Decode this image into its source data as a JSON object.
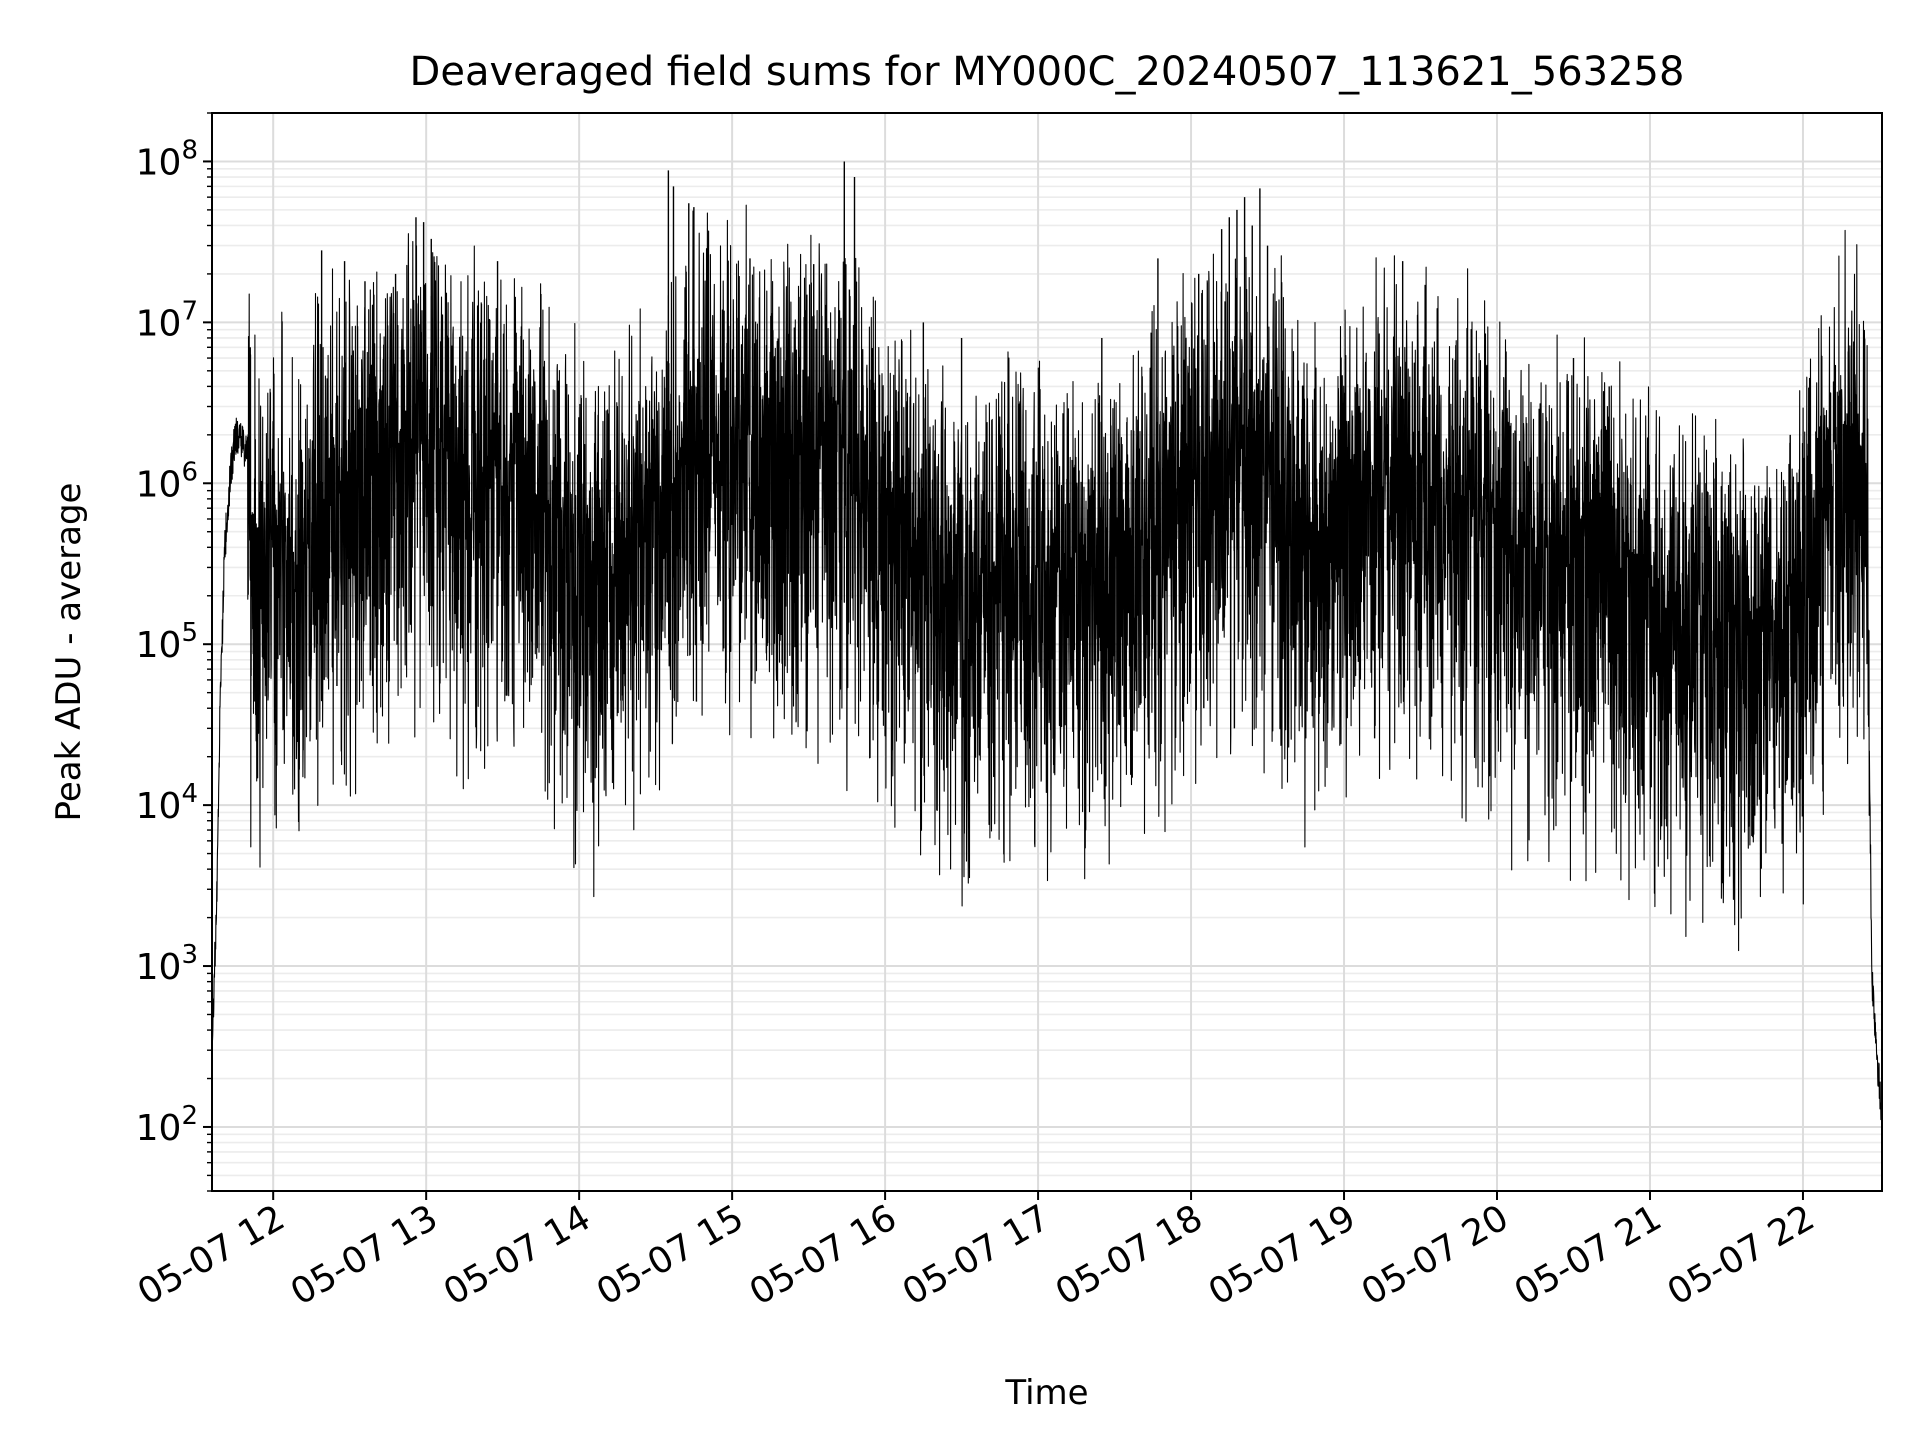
{
  "chart_data": {
    "type": "line",
    "title": "Deaveraged field sums for MY000C_20240507_113621_563258",
    "xlabel": "Time",
    "ylabel": "Peak ADU - average",
    "yscale": "log",
    "ylim": [
      40,
      200000000
    ],
    "xlim": [
      "2024-05-07 11:36",
      "2024-05-07 22:31"
    ],
    "grid": true,
    "x_ticks": [
      {
        "x": "2024-05-07 12:00",
        "label": "05-07 12"
      },
      {
        "x": "2024-05-07 13:00",
        "label": "05-07 13"
      },
      {
        "x": "2024-05-07 14:00",
        "label": "05-07 14"
      },
      {
        "x": "2024-05-07 15:00",
        "label": "05-07 15"
      },
      {
        "x": "2024-05-07 16:00",
        "label": "05-07 16"
      },
      {
        "x": "2024-05-07 17:00",
        "label": "05-07 17"
      },
      {
        "x": "2024-05-07 18:00",
        "label": "05-07 18"
      },
      {
        "x": "2024-05-07 19:00",
        "label": "05-07 19"
      },
      {
        "x": "2024-05-07 20:00",
        "label": "05-07 20"
      },
      {
        "x": "2024-05-07 21:00",
        "label": "05-07 21"
      },
      {
        "x": "2024-05-07 22:00",
        "label": "05-07 22"
      }
    ],
    "y_ticks": [
      {
        "value": 100,
        "base": "10",
        "exp": "2"
      },
      {
        "value": 1000,
        "base": "10",
        "exp": "3"
      },
      {
        "value": 10000,
        "base": "10",
        "exp": "4"
      },
      {
        "value": 100000,
        "base": "10",
        "exp": "5"
      },
      {
        "value": 1000000,
        "base": "10",
        "exp": "6"
      },
      {
        "value": 10000000,
        "base": "10",
        "exp": "7"
      },
      {
        "value": 100000000,
        "base": "10",
        "exp": "8"
      }
    ],
    "series": [
      {
        "color": "#000000",
        "x": [
          "2024-05-07 11:36",
          "2024-05-07 11:37",
          "2024-05-07 11:38",
          "2024-05-07 11:39",
          "2024-05-07 11:41",
          "2024-05-07 11:43",
          "2024-05-07 11:45",
          "2024-05-07 11:48",
          "2024-05-07 11:50",
          "2024-05-07 11:52",
          "2024-05-07 11:55",
          "2024-05-07 12:00",
          "2024-05-07 12:10",
          "2024-05-07 12:20",
          "2024-05-07 12:30",
          "2024-05-07 12:40",
          "2024-05-07 12:50",
          "2024-05-07 13:00",
          "2024-05-07 13:10",
          "2024-05-07 13:20",
          "2024-05-07 13:30",
          "2024-05-07 13:40",
          "2024-05-07 13:50",
          "2024-05-07 14:00",
          "2024-05-07 14:10",
          "2024-05-07 14:20",
          "2024-05-07 14:30",
          "2024-05-07 14:40",
          "2024-05-07 14:50",
          "2024-05-07 15:00",
          "2024-05-07 15:10",
          "2024-05-07 15:20",
          "2024-05-07 15:30",
          "2024-05-07 15:40",
          "2024-05-07 15:50",
          "2024-05-07 16:00",
          "2024-05-07 16:10",
          "2024-05-07 16:20",
          "2024-05-07 16:30",
          "2024-05-07 16:40",
          "2024-05-07 16:50",
          "2024-05-07 17:00",
          "2024-05-07 17:10",
          "2024-05-07 17:20",
          "2024-05-07 17:30",
          "2024-05-07 17:40",
          "2024-05-07 17:50",
          "2024-05-07 18:00",
          "2024-05-07 18:10",
          "2024-05-07 18:20",
          "2024-05-07 18:30",
          "2024-05-07 18:40",
          "2024-05-07 18:50",
          "2024-05-07 19:00",
          "2024-05-07 19:10",
          "2024-05-07 19:20",
          "2024-05-07 19:30",
          "2024-05-07 19:40",
          "2024-05-07 19:50",
          "2024-05-07 20:00",
          "2024-05-07 20:10",
          "2024-05-07 20:20",
          "2024-05-07 20:30",
          "2024-05-07 20:40",
          "2024-05-07 20:50",
          "2024-05-07 21:00",
          "2024-05-07 21:10",
          "2024-05-07 21:20",
          "2024-05-07 21:30",
          "2024-05-07 21:40",
          "2024-05-07 21:50",
          "2024-05-07 22:00",
          "2024-05-07 22:05",
          "2024-05-07 22:10",
          "2024-05-07 22:15",
          "2024-05-07 22:20",
          "2024-05-07 22:25",
          "2024-05-07 22:27",
          "2024-05-07 22:29",
          "2024-05-07 22:31"
        ],
        "y": [
          300,
          1000,
          3000,
          30000,
          400000,
          1000000,
          2000000,
          1800000,
          1500000,
          400000,
          300000,
          500000,
          300000,
          800000,
          1000000,
          1500000,
          1800000,
          2000000,
          1500000,
          1200000,
          1500000,
          1000000,
          600000,
          400000,
          300000,
          500000,
          800000,
          1200000,
          3000000,
          2000000,
          2000000,
          1500000,
          1500000,
          2000000,
          1200000,
          800000,
          500000,
          300000,
          200000,
          300000,
          400000,
          300000,
          250000,
          300000,
          350000,
          400000,
          600000,
          1200000,
          1500000,
          1500000,
          1200000,
          800000,
          500000,
          800000,
          900000,
          1000000,
          1000000,
          900000,
          800000,
          600000,
          400000,
          400000,
          300000,
          300000,
          250000,
          200000,
          150000,
          150000,
          120000,
          120000,
          120000,
          250000,
          500000,
          800000,
          1400000,
          1700000,
          800000,
          900,
          300,
          100
        ]
      }
    ],
    "noise_band": {
      "decades_below": [
        0,
        0.05,
        0.1,
        0.2,
        0.3,
        0.4,
        0.5,
        0.55,
        0.6,
        0.7,
        0.75,
        0.8,
        1.0,
        1.05,
        1.1,
        1.2,
        1.3,
        1.4,
        1.5,
        1.6,
        1.7,
        1.8,
        1.9,
        2.0,
        2.1
      ],
      "decades_above": [
        0,
        0.1,
        0.2,
        0.3,
        0.4,
        0.5,
        0.6,
        0.8,
        1.0,
        1.2,
        1.4,
        1.5,
        1.6,
        1.8
      ]
    },
    "peaks": [
      {
        "x": "2024-05-07 11:51",
        "y": 7000000
      },
      {
        "x": "2024-05-07 12:19",
        "y": 28000000
      },
      {
        "x": "2024-05-07 12:28",
        "y": 24000000
      },
      {
        "x": "2024-05-07 12:36",
        "y": 18000000
      },
      {
        "x": "2024-05-07 12:48",
        "y": 20000000
      },
      {
        "x": "2024-05-07 12:56",
        "y": 45000000
      },
      {
        "x": "2024-05-07 12:59",
        "y": 42000000
      },
      {
        "x": "2024-05-07 13:02",
        "y": 33000000
      },
      {
        "x": "2024-05-07 13:28",
        "y": 24000000
      },
      {
        "x": "2024-05-07 13:45",
        "y": 15000000
      },
      {
        "x": "2024-05-07 14:35",
        "y": 88000000
      },
      {
        "x": "2024-05-07 14:37",
        "y": 70000000
      },
      {
        "x": "2024-05-07 14:43",
        "y": 55000000
      },
      {
        "x": "2024-05-07 14:45",
        "y": 52000000
      },
      {
        "x": "2024-05-07 15:07",
        "y": 25000000
      },
      {
        "x": "2024-05-07 15:32",
        "y": 23000000
      },
      {
        "x": "2024-05-07 15:44",
        "y": 100000000
      },
      {
        "x": "2024-05-07 15:48",
        "y": 80000000
      },
      {
        "x": "2024-05-07 15:46",
        "y": 16000000
      },
      {
        "x": "2024-05-07 16:15",
        "y": 10000000
      },
      {
        "x": "2024-05-07 16:30",
        "y": 8000000
      },
      {
        "x": "2024-05-07 17:25",
        "y": 8000000
      },
      {
        "x": "2024-05-07 17:47",
        "y": 25000000
      },
      {
        "x": "2024-05-07 18:03",
        "y": 20000000
      },
      {
        "x": "2024-05-07 18:12",
        "y": 38000000
      },
      {
        "x": "2024-05-07 18:15",
        "y": 45000000
      },
      {
        "x": "2024-05-07 18:18",
        "y": 50000000
      },
      {
        "x": "2024-05-07 18:21",
        "y": 60000000
      },
      {
        "x": "2024-05-07 18:24",
        "y": 40000000
      },
      {
        "x": "2024-05-07 18:27",
        "y": 68000000
      },
      {
        "x": "2024-05-07 18:30",
        "y": 30000000
      },
      {
        "x": "2024-05-07 19:23",
        "y": 24000000
      },
      {
        "x": "2024-05-07 20:30",
        "y": 6000000
      },
      {
        "x": "2024-05-07 20:44",
        "y": 4000000
      },
      {
        "x": "2024-05-07 21:55",
        "y": 2000000
      },
      {
        "x": "2024-05-07 22:14",
        "y": 3500000
      },
      {
        "x": "2024-05-07 22:19",
        "y": 3200000
      }
    ],
    "troughs": [
      {
        "x": "2024-05-07 12:20",
        "y": 60000
      },
      {
        "x": "2024-05-07 12:25",
        "y": 55000
      },
      {
        "x": "2024-05-07 12:39",
        "y": 55000
      },
      {
        "x": "2024-05-07 14:10",
        "y": 45000
      },
      {
        "x": "2024-05-07 14:17",
        "y": 48000
      },
      {
        "x": "2024-05-07 14:46",
        "y": 44000
      },
      {
        "x": "2024-05-07 16:25",
        "y": 38000
      },
      {
        "x": "2024-05-07 16:56",
        "y": 38000
      },
      {
        "x": "2024-05-07 17:40",
        "y": 42000
      },
      {
        "x": "2024-05-07 18:05",
        "y": 40000
      },
      {
        "x": "2024-05-07 18:17",
        "y": 30000
      },
      {
        "x": "2024-05-07 18:45",
        "y": 26000
      },
      {
        "x": "2024-05-07 19:12",
        "y": 26000
      },
      {
        "x": "2024-05-07 20:50",
        "y": 45000
      },
      {
        "x": "2024-05-07 21:40",
        "y": 24000
      },
      {
        "x": "2024-05-07 21:47",
        "y": 25000
      }
    ]
  }
}
